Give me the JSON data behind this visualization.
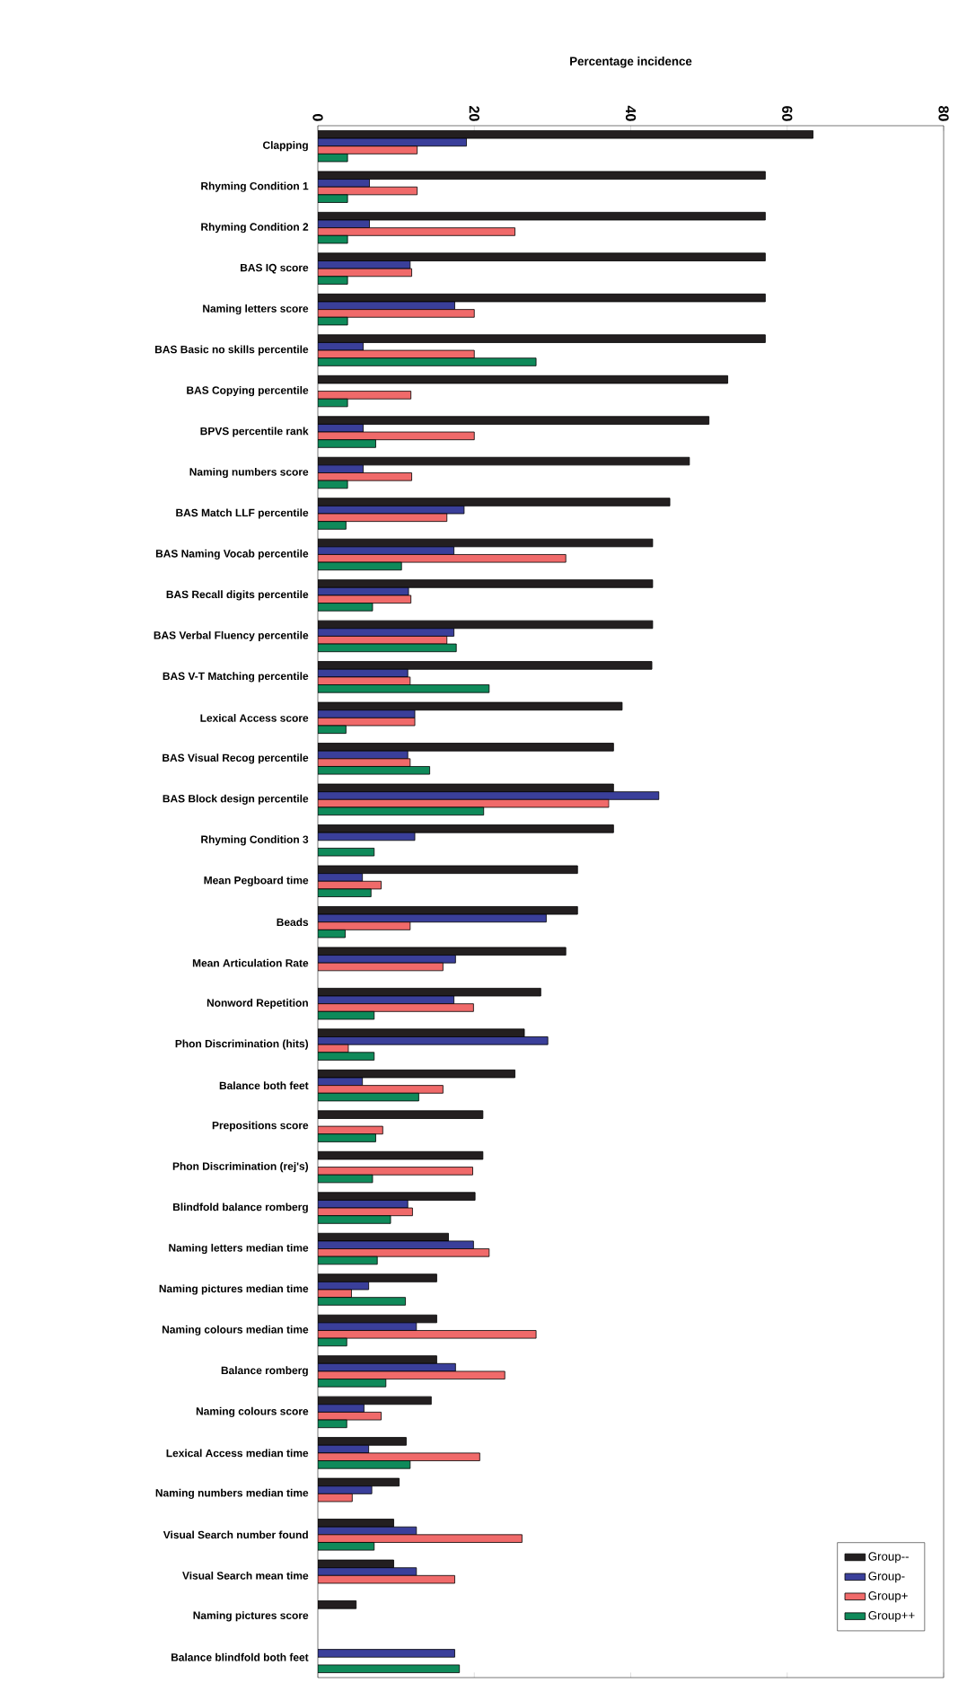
{
  "chart_data": {
    "type": "bar",
    "orientation": "horizontal",
    "xlabel": "Percentage incidence",
    "categories": [
      "Clapping",
      "Rhyming Condition 1",
      "Rhyming Condition 2",
      "BAS IQ score",
      "Naming letters score",
      "BAS Basic no skills percentile",
      "BAS Copying percentile",
      "BPVS percentile rank",
      "Naming numbers score",
      "BAS Match LLF percentile",
      "BAS Naming Vocab percentile",
      "BAS Recall digits percentile",
      "BAS Verbal Fluency percentile",
      "BAS V-T Matching percentile",
      "Lexical Access score",
      "BAS Visual Recog percentile",
      "BAS Block design percentile",
      "Rhyming Condition 3",
      "Mean Pegboard time",
      "Beads",
      "Mean Articulation Rate",
      "Nonword Repetition",
      "Phon Discrimination (hits)",
      "Balance both feet",
      "Prepositions score",
      "Phon Discrimination (rej's)",
      "Blindfold balance romberg",
      "Naming letters median time",
      "Naming pictures median time",
      "Naming colours median time",
      "Balance romberg",
      "Naming colours score",
      "Lexical Access median time",
      "Naming numbers median time",
      "Visual Search number found",
      "Visual Search mean time",
      "Naming pictures score",
      "Balance blindfold both feet"
    ],
    "series": [
      {
        "name": "Group--",
        "color": "#231f20",
        "values": [
          63.3,
          57.2,
          57.2,
          57.2,
          57.2,
          57.2,
          52.4,
          50,
          47.5,
          45,
          42.8,
          42.8,
          42.8,
          42.7,
          38.9,
          37.8,
          37.8,
          37.8,
          33.2,
          33.2,
          31.7,
          28.5,
          26.4,
          25.2,
          21.1,
          21.1,
          20.1,
          16.7,
          15.2,
          15.2,
          15.2,
          14.5,
          11.3,
          10.4,
          9.7,
          9.7,
          4.9,
          null
        ]
      },
      {
        "name": "Group-",
        "color": "#3a3f9a",
        "values": [
          19,
          6.6,
          6.6,
          11.8,
          17.5,
          5.8,
          null,
          5.8,
          5.8,
          18.7,
          17.4,
          11.6,
          17.4,
          11.5,
          12.4,
          11.5,
          43.6,
          12.4,
          5.7,
          29.2,
          17.6,
          17.4,
          29.4,
          5.7,
          null,
          null,
          11.5,
          19.9,
          6.5,
          12.6,
          17.6,
          5.9,
          6.5,
          6.9,
          12.6,
          12.6,
          null,
          17.5
        ]
      },
      {
        "name": "Group+",
        "color": "#f06a6a",
        "values": [
          12.7,
          12.7,
          25.2,
          12,
          20,
          20,
          11.9,
          20,
          12,
          16.5,
          31.7,
          11.9,
          16.5,
          11.8,
          12.4,
          11.8,
          37.2,
          null,
          8.1,
          11.8,
          16,
          19.9,
          3.9,
          16,
          8.3,
          19.8,
          12.1,
          21.9,
          4.3,
          27.9,
          23.9,
          8.1,
          20.7,
          4.4,
          26.1,
          17.5,
          null,
          null
        ]
      },
      {
        "name": "Group++",
        "color": "#0f8a5a",
        "values": [
          3.8,
          3.8,
          3.8,
          3.8,
          3.8,
          27.9,
          3.8,
          7.4,
          3.8,
          3.6,
          10.7,
          7,
          17.7,
          21.9,
          3.6,
          14.3,
          21.2,
          7.2,
          6.8,
          3.5,
          null,
          7.2,
          7.2,
          12.9,
          7.4,
          7,
          9.3,
          7.6,
          11.2,
          3.7,
          8.7,
          3.7,
          11.8,
          null,
          7.2,
          null,
          null,
          18.1
        ]
      }
    ],
    "xlim": [
      0,
      80
    ],
    "xticks": [
      0,
      20,
      40,
      60,
      80
    ],
    "legend": "bottom right",
    "grid": false
  }
}
